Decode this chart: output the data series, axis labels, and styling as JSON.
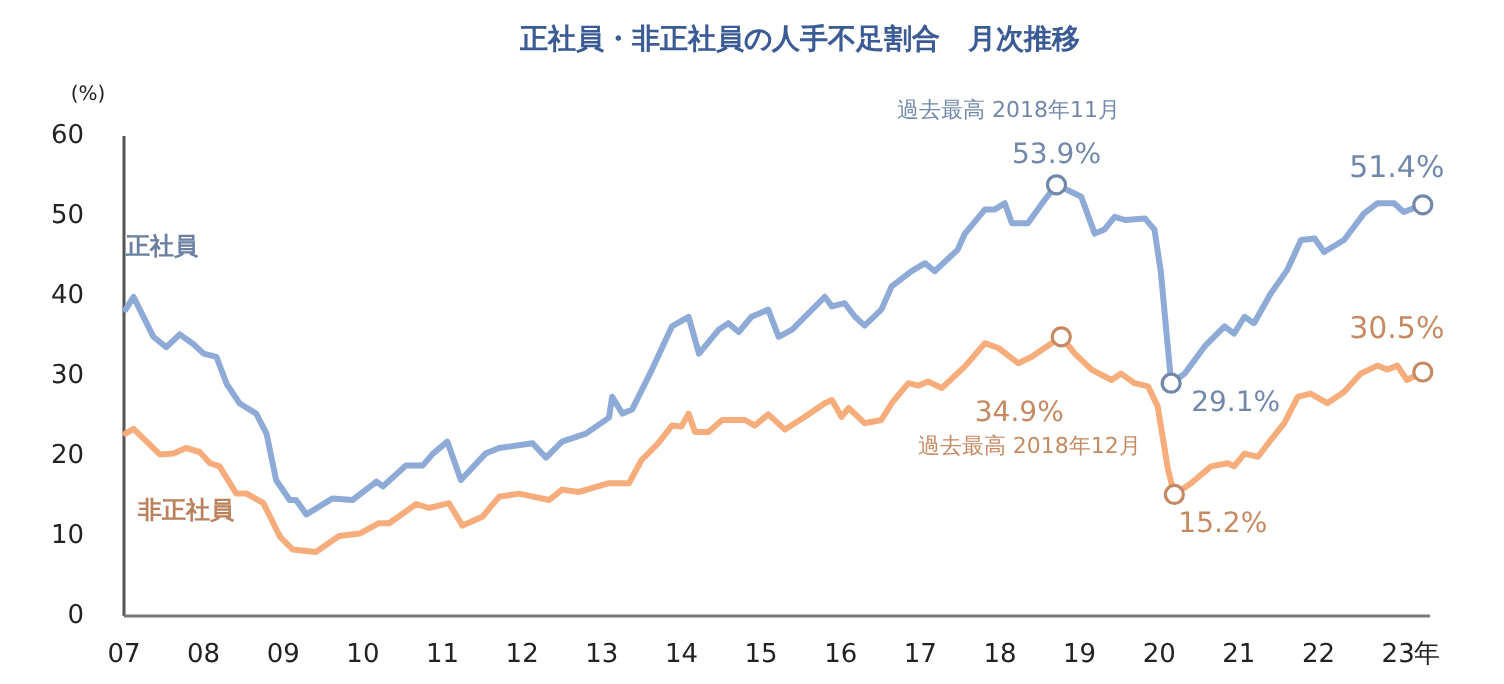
{
  "chart_data": {
    "type": "line",
    "title": "正社員・非正社員の人手不足割合　月次推移",
    "ylabel": "(%)",
    "xlim": [
      2007,
      2023.4
    ],
    "xticks": [
      {
        "value": 2007,
        "label": "07"
      },
      {
        "value": 2008,
        "label": "08"
      },
      {
        "value": 2009,
        "label": "09"
      },
      {
        "value": 2010,
        "label": "10"
      },
      {
        "value": 2011,
        "label": "11"
      },
      {
        "value": 2012,
        "label": "12"
      },
      {
        "value": 2013,
        "label": "13"
      },
      {
        "value": 2014,
        "label": "14"
      },
      {
        "value": 2015,
        "label": "15"
      },
      {
        "value": 2016,
        "label": "16"
      },
      {
        "value": 2017,
        "label": "17"
      },
      {
        "value": 2018,
        "label": "18"
      },
      {
        "value": 2019,
        "label": "19"
      },
      {
        "value": 2020,
        "label": "20"
      },
      {
        "value": 2021,
        "label": "21"
      },
      {
        "value": 2022,
        "label": "22"
      },
      {
        "value": 2023,
        "label": "23"
      }
    ],
    "xlabel": "年",
    "ylim": [
      0,
      60
    ],
    "yticks": [
      0,
      10,
      20,
      30,
      40,
      50,
      60
    ],
    "grid": false,
    "legend": false,
    "series": [
      {
        "name": "正社員",
        "color": "#8eaad6",
        "x": [
          2007.02,
          2007.12,
          2007.37,
          2007.53,
          2007.7,
          2007.87,
          2008.0,
          2008.16,
          2008.29,
          2008.45,
          2008.66,
          2008.79,
          2008.91,
          2009.08,
          2009.16,
          2009.29,
          2009.62,
          2009.87,
          2010.17,
          2010.25,
          2010.54,
          2010.75,
          2010.88,
          2011.06,
          2011.23,
          2011.54,
          2011.71,
          2012.13,
          2012.3,
          2012.5,
          2012.8,
          2013.09,
          2013.13,
          2013.26,
          2013.38,
          2013.63,
          2013.88,
          2014.09,
          2014.22,
          2014.47,
          2014.59,
          2014.72,
          2014.88,
          2015.09,
          2015.22,
          2015.39,
          2015.8,
          2015.89,
          2016.05,
          2016.18,
          2016.3,
          2016.51,
          2016.64,
          2016.89,
          2017.06,
          2017.18,
          2017.47,
          2017.56,
          2017.81,
          2017.93,
          2018.06,
          2018.15,
          2018.35,
          2018.56,
          2018.71,
          2019.02,
          2019.19,
          2019.31,
          2019.44,
          2019.57,
          2019.82,
          2019.94,
          2020.02,
          2020.15,
          2020.32,
          2020.57,
          2020.82,
          2020.94,
          2021.07,
          2021.19,
          2021.4,
          2021.61,
          2021.78,
          2021.95,
          2022.07,
          2022.32,
          2022.57,
          2022.74,
          2022.95,
          2023.07,
          2023.31
        ],
        "values": [
          38.3,
          39.9,
          34.9,
          33.6,
          35.2,
          34,
          32.8,
          32.4,
          29,
          26.6,
          25.3,
          22.8,
          17,
          14.5,
          14.5,
          12.7,
          14.7,
          14.5,
          16.8,
          16.2,
          18.8,
          18.8,
          20.3,
          21.8,
          17,
          20.3,
          21,
          21.6,
          19.8,
          21.8,
          22.8,
          24.8,
          27.4,
          25.3,
          25.8,
          30.8,
          36.2,
          37.4,
          32.8,
          35.8,
          36.6,
          35.5,
          37.4,
          38.3,
          34.9,
          35.8,
          39.9,
          38.7,
          39.1,
          37.4,
          36.3,
          38.3,
          41.2,
          43.1,
          44.1,
          43.1,
          45.8,
          47.8,
          50.8,
          50.8,
          51.6,
          49.1,
          49.1,
          52,
          53.9,
          52.4,
          47.8,
          48.3,
          49.9,
          49.5,
          49.7,
          48.3,
          43,
          29.1,
          30.3,
          33.7,
          36.2,
          35.3,
          37.4,
          36.6,
          40.3,
          43.3,
          47,
          47.2,
          45.5,
          47,
          50.3,
          51.6,
          51.6,
          50.5,
          51.4
        ]
      },
      {
        "name": "非正社員",
        "color": "#f6ad7b",
        "x": [
          2007.02,
          2007.12,
          2007.45,
          2007.62,
          2007.78,
          2007.95,
          2008.08,
          2008.2,
          2008.41,
          2008.54,
          2008.75,
          2008.96,
          2009.12,
          2009.41,
          2009.7,
          2009.96,
          2010.2,
          2010.33,
          2010.67,
          2010.83,
          2011.08,
          2011.25,
          2011.5,
          2011.71,
          2011.96,
          2012.34,
          2012.5,
          2012.71,
          2013.09,
          2013.34,
          2013.5,
          2013.71,
          2013.88,
          2014.0,
          2014.09,
          2014.17,
          2014.34,
          2014.51,
          2014.8,
          2014.92,
          2015.09,
          2015.3,
          2015.55,
          2015.8,
          2015.89,
          2016.01,
          2016.1,
          2016.3,
          2016.51,
          2016.64,
          2016.85,
          2016.98,
          2017.1,
          2017.27,
          2017.56,
          2017.81,
          2017.98,
          2018.23,
          2018.4,
          2018.56,
          2018.77,
          2018.94,
          2019.15,
          2019.4,
          2019.52,
          2019.69,
          2019.86,
          2019.98,
          2020.11,
          2020.19,
          2020.4,
          2020.65,
          2020.86,
          2020.94,
          2021.07,
          2021.24,
          2021.4,
          2021.57,
          2021.74,
          2021.9,
          2022.11,
          2022.32,
          2022.53,
          2022.74,
          2022.86,
          2022.99,
          2023.11,
          2023.31
        ],
        "values": [
          22.8,
          23.4,
          20.2,
          20.3,
          21,
          20.5,
          19.1,
          18.7,
          15.3,
          15.3,
          14.1,
          9.9,
          8.3,
          8,
          10,
          10.3,
          11.6,
          11.6,
          14,
          13.5,
          14.1,
          11.3,
          12.4,
          14.9,
          15.3,
          14.5,
          15.8,
          15.5,
          16.6,
          16.6,
          19.5,
          21.6,
          23.8,
          23.7,
          25.3,
          23,
          23,
          24.5,
          24.5,
          23.8,
          25.2,
          23.3,
          24.9,
          26.6,
          27,
          24.9,
          26,
          24.1,
          24.5,
          26.6,
          29.1,
          28.8,
          29.3,
          28.5,
          31.2,
          34.1,
          33.5,
          31.6,
          32.4,
          33.5,
          34.9,
          32.8,
          30.8,
          29.5,
          30.3,
          29.1,
          28.7,
          26.2,
          18.3,
          15.2,
          16.6,
          18.7,
          19.1,
          18.7,
          20.3,
          19.9,
          22,
          24.1,
          27.4,
          27.8,
          26.6,
          28,
          30.3,
          31.3,
          30.8,
          31.3,
          29.5,
          30.5
        ]
      }
    ],
    "annotations": [
      "過去最高 2018年11月",
      {
        "text": "53.9%",
        "x": 2018.71,
        "y": 53.9
      },
      {
        "text": "29.1%",
        "x": 2020.15,
        "y": 29.1
      },
      {
        "text": "51.4%",
        "x": 2023.31,
        "y": 51.4
      },
      "過去最高 2018年12月",
      {
        "text": "34.9%",
        "x": 2018.77,
        "y": 34.9
      },
      {
        "text": "15.2%",
        "x": 2020.19,
        "y": 15.2
      },
      {
        "text": "30.5%",
        "x": 2023.31,
        "y": 30.5
      }
    ]
  }
}
